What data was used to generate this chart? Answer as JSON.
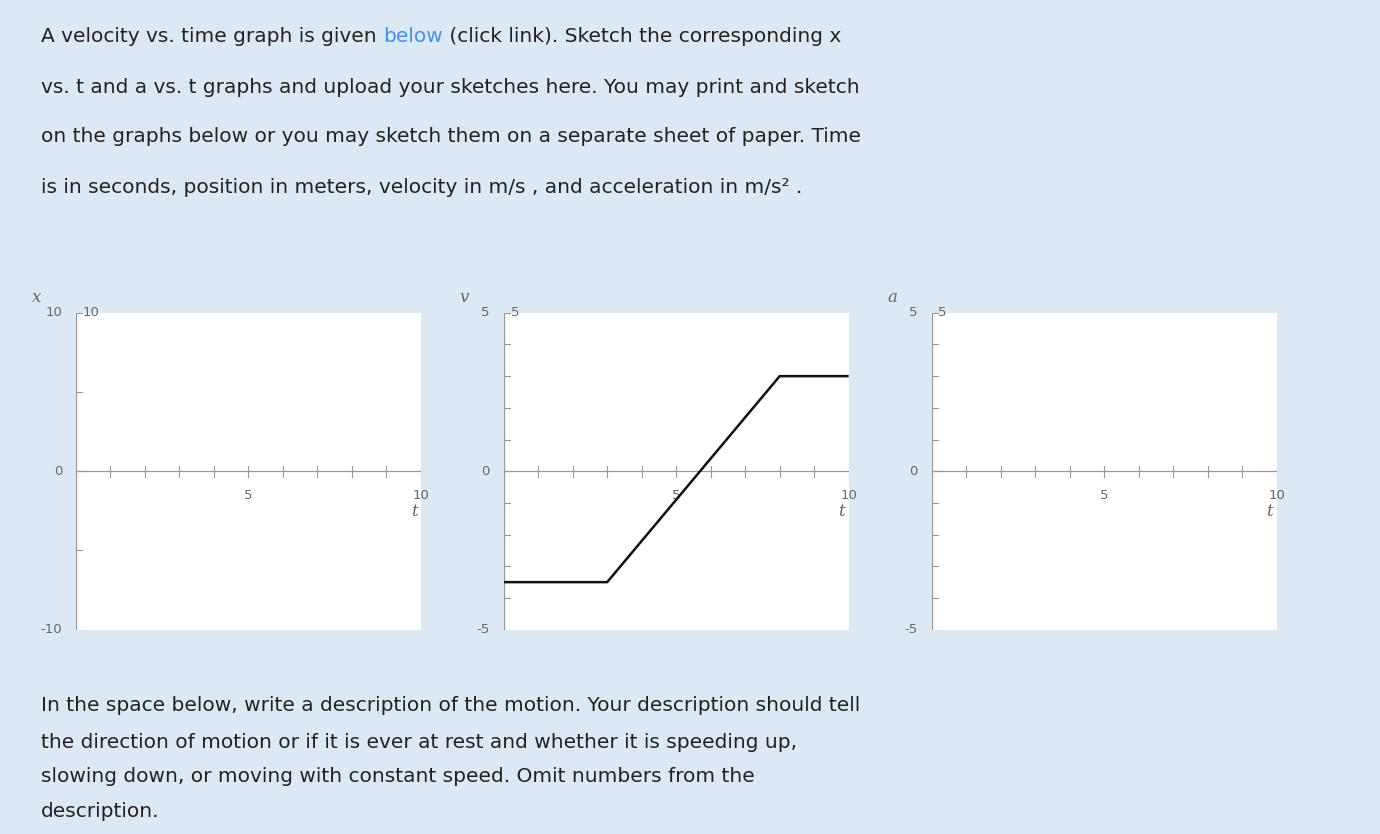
{
  "top_text_part1": "A velocity vs. time graph is given ",
  "top_text_link": "below",
  "top_text_part2": " (click link). Sketch the corresponding x",
  "top_text_line2": "vs. t and a vs. t graphs and upload your sketches here. You may print and sketch",
  "top_text_line3": "on the graphs below or you may sketch them on a separate sheet of paper. Time",
  "top_text_line4": "is in seconds, position in meters, velocity in m/s , and acceleration in m/s² .",
  "bottom_text_line1": "In the space below, write a description of the motion. Your description should tell",
  "bottom_text_line2": "the direction of motion or if it is ever at rest and whether it is speeding up,",
  "bottom_text_line3": "slowing down, or moving with constant speed. Omit numbers from the",
  "bottom_text_line4": "description.",
  "bg_color": "#dce9f5",
  "white_box_color": "#ffffff",
  "text_color": "#222222",
  "link_color": "#4a90d9",
  "graph_line_color": "#111111",
  "axis_color": "#999999",
  "tick_color": "#999999",
  "label_color": "#666666",
  "text_fontsize": 14.5,
  "graphs": [
    {
      "ylabel": "x",
      "ymax_label": "10",
      "ymin_label": "-10",
      "xlabel": "t",
      "ylim": [
        -10,
        10
      ],
      "xlim": [
        0,
        10
      ],
      "y_major_ticks": [
        -10,
        -5,
        0,
        5,
        10
      ],
      "x_major_ticks": [
        0,
        1,
        2,
        3,
        4,
        5,
        6,
        7,
        8,
        9,
        10
      ],
      "x_label_ticks": [
        5,
        10
      ],
      "y_label_ticks": [
        -10,
        10
      ],
      "curve_x": [],
      "curve_y": [],
      "zero_label": "0"
    },
    {
      "ylabel": "v",
      "ymax_label": "5",
      "ymin_label": "-5",
      "xlabel": "t",
      "ylim": [
        -5,
        5
      ],
      "xlim": [
        0,
        10
      ],
      "y_major_ticks": [
        -5,
        -4,
        -3,
        -2,
        -1,
        0,
        1,
        2,
        3,
        4,
        5
      ],
      "x_major_ticks": [
        0,
        1,
        2,
        3,
        4,
        5,
        6,
        7,
        8,
        9,
        10
      ],
      "x_label_ticks": [
        5,
        10
      ],
      "y_label_ticks": [
        -5,
        5
      ],
      "curve_x": [
        0,
        3,
        8,
        10
      ],
      "curve_y": [
        -3.5,
        -3.5,
        3,
        3
      ],
      "zero_label": "0"
    },
    {
      "ylabel": "a",
      "ymax_label": "5",
      "ymin_label": "-5",
      "xlabel": "t",
      "ylim": [
        -5,
        5
      ],
      "xlim": [
        0,
        10
      ],
      "y_major_ticks": [
        -5,
        -4,
        -3,
        -2,
        -1,
        0,
        1,
        2,
        3,
        4,
        5
      ],
      "x_major_ticks": [
        0,
        1,
        2,
        3,
        4,
        5,
        6,
        7,
        8,
        9,
        10
      ],
      "x_label_ticks": [
        5,
        10
      ],
      "y_label_ticks": [
        -5,
        5
      ],
      "curve_x": [],
      "curve_y": [],
      "zero_label": "0"
    }
  ]
}
